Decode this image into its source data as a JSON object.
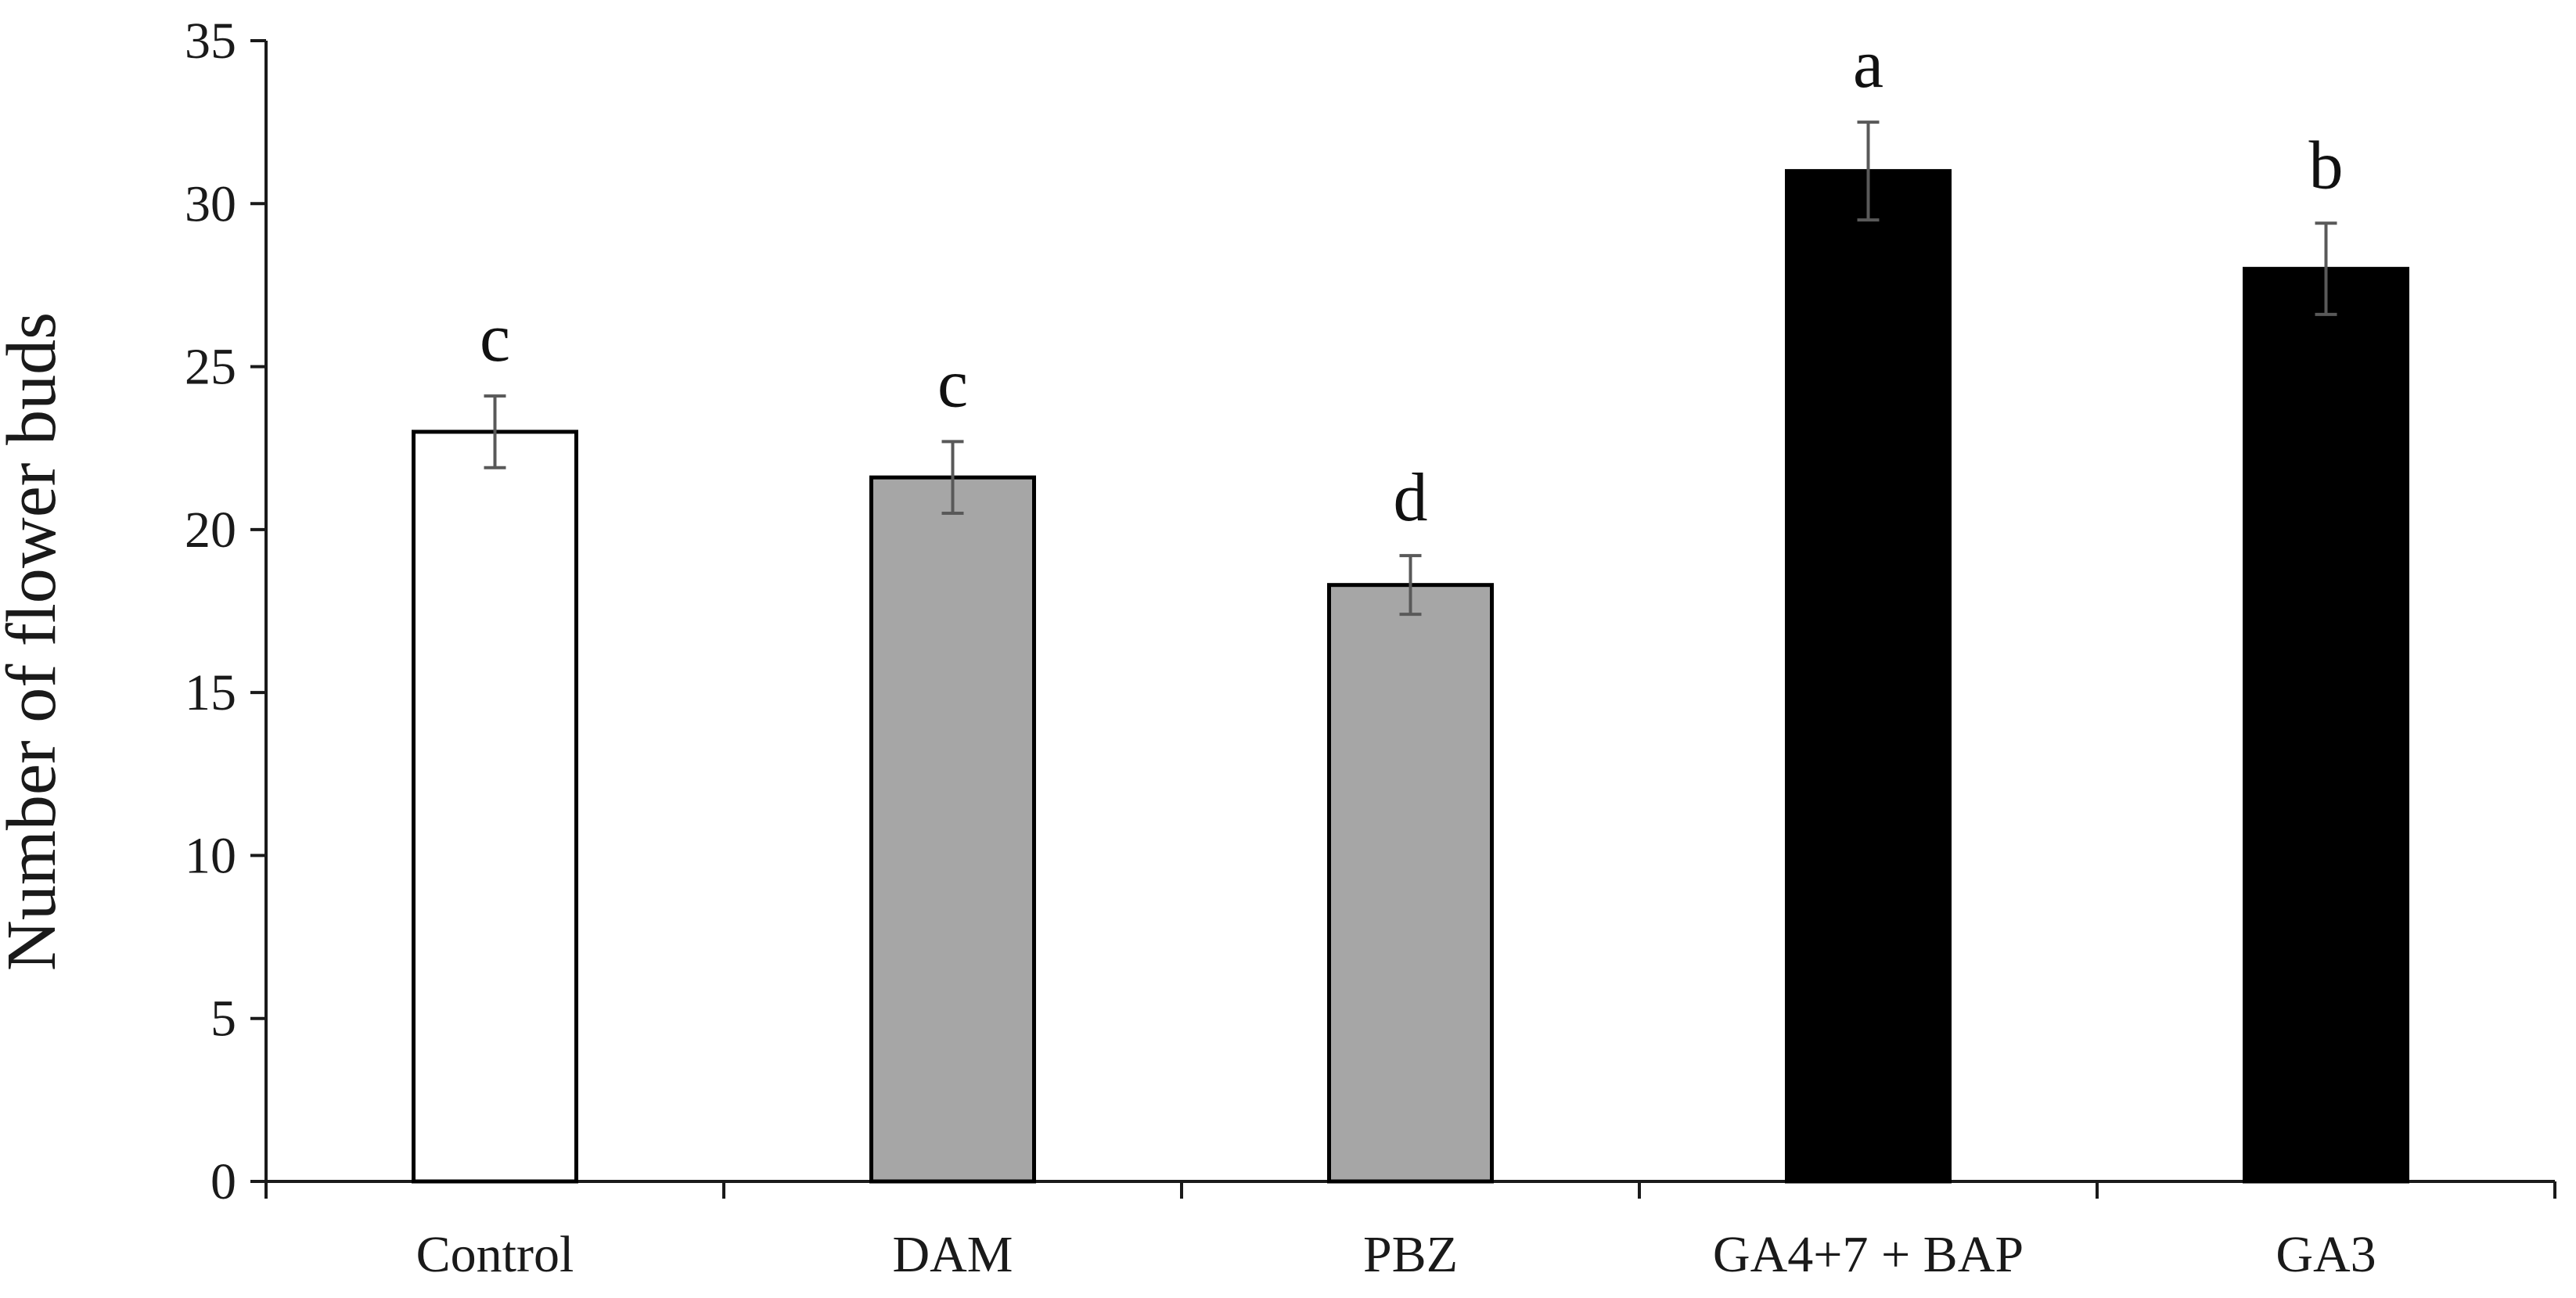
{
  "chart_data": {
    "type": "bar",
    "title": "",
    "xlabel": "",
    "ylabel": "Number of flower buds",
    "ylim": [
      0,
      35
    ],
    "yticks": [
      0,
      5,
      10,
      15,
      20,
      25,
      30,
      35
    ],
    "grid": false,
    "categories": [
      "Control",
      "DAM",
      "PBZ",
      "GA4+7 + BAP",
      "GA3"
    ],
    "values": [
      23.0,
      21.6,
      18.3,
      31.0,
      28.0
    ],
    "errors": [
      1.1,
      1.1,
      0.9,
      1.5,
      1.4
    ],
    "significance_letters": [
      "c",
      "c",
      "d",
      "a",
      "b"
    ],
    "bar_colors": [
      "#ffffff",
      "#a6a6a6",
      "#a6a6a6",
      "#000000",
      "#000000"
    ]
  }
}
